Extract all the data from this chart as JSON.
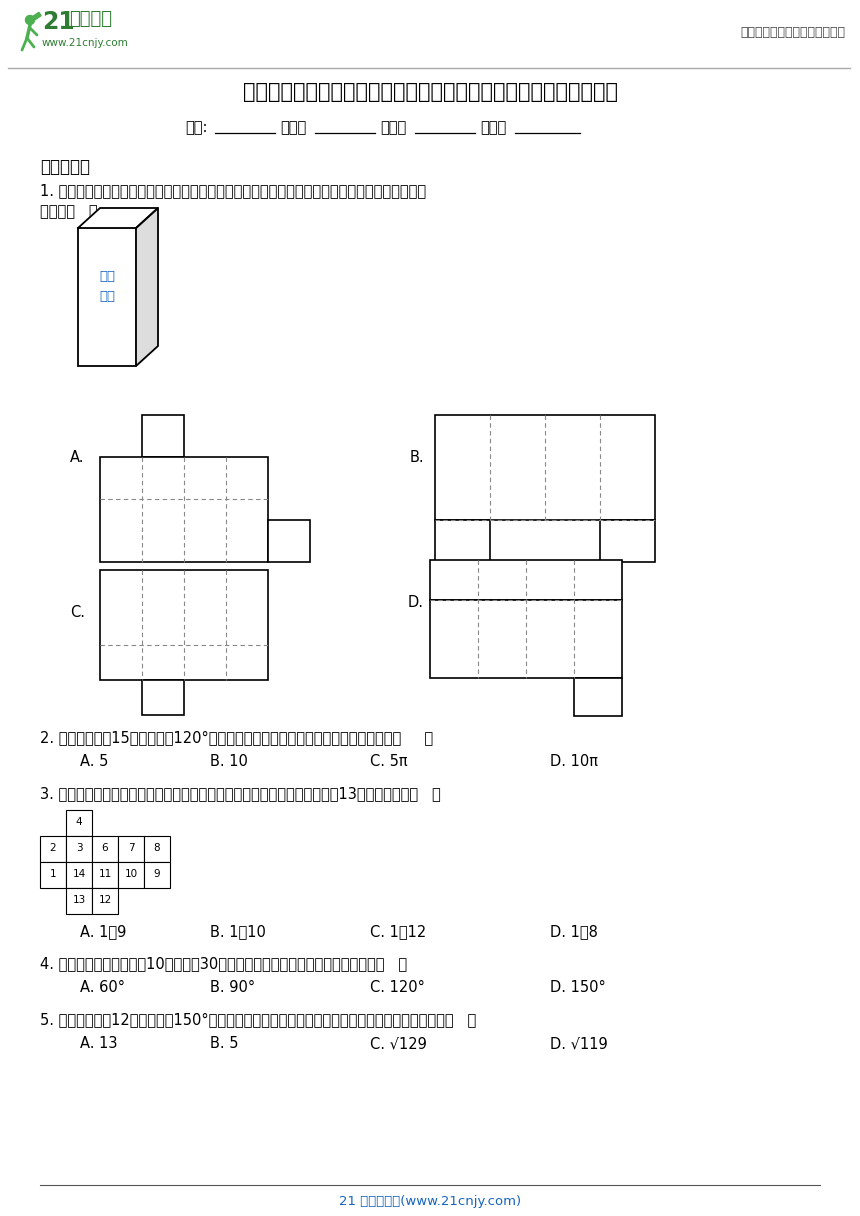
{
  "title": "青岛版数学九年级下册第七章空间图形的初步认识期末章节基础练习",
  "header_right": "中小学教育资源及组卷应用平台",
  "logo_text1": "21",
  "logo_text2": "世纪教育",
  "logo_sub": "www.21cnjy.com",
  "info_line_parts": [
    "学校:",
    "          姓名：",
    " __________班级：",
    " __________考号：",
    " __________"
  ],
  "section1": "一、单选题",
  "q1_line1": "1. 将如图所示的长方体牛奶包装盒沿某些棱剪开，且使六个面连在一起，然后铺平，则得到的图形",
  "q1_line2": "可能是（   ）",
  "milk_text1": "高钙",
  "milk_text2": "牛奶",
  "q2": "2. 用一个半径为15、圆心角为120°的扇形围成一个圆锥，则这个圆锥的底面半径是（     ）",
  "q2_options": [
    "A. 5",
    "B. 10",
    "C. 5π",
    "D. 10π"
  ],
  "q3": "3. 如图是某正方体的展开图，在顶点处标有数字，当把它折成正方体时，与13重合的数字是（   ）",
  "q3_options": [
    "A. 1和9",
    "B. 1和10",
    "C. 1和12",
    "D. 1和8"
  ],
  "q4": "4. 一个圆锥的底面半径为10，母线长30，则它的侧面展开图（扇形）的圆心角是（   ）",
  "q4_options": [
    "A. 60°",
    "B. 90°",
    "C. 120°",
    "D. 150°"
  ],
  "q5": "5. 把一个半径为12，圆心角为150°的扇形围成一个圆锥（接缝处不重叠），那么这个圆锥的高是（   ）",
  "q5_options": [
    "A. 13",
    "B. 5",
    "C. √129",
    "D. √119"
  ],
  "footer": "21 世纪教育网(www.21cnjy.com)",
  "bg_color": "#ffffff",
  "green_color": "#2e7d32",
  "blue_color": "#1565c0",
  "gray_color": "#666666"
}
